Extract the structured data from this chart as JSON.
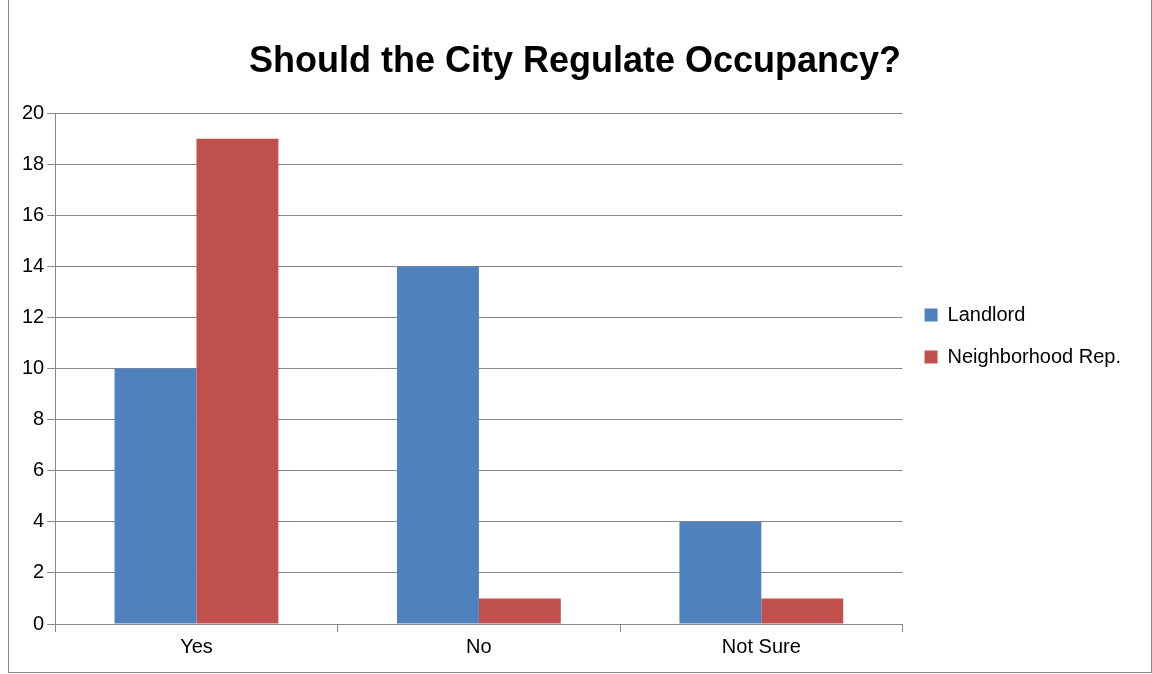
{
  "chart_data": {
    "type": "bar",
    "title": "Should the City Regulate Occupancy?",
    "categories": [
      "Yes",
      "No",
      "Not Sure"
    ],
    "series": [
      {
        "name": "Landlord",
        "color": "#4f81bd",
        "values": [
          10,
          14,
          4
        ]
      },
      {
        "name": "Neighborhood Rep.",
        "color": "#c0504d",
        "values": [
          19,
          1,
          1
        ]
      }
    ],
    "ylim": [
      0,
      20
    ],
    "yticks": [
      0,
      2,
      4,
      6,
      8,
      10,
      12,
      14,
      16,
      18,
      20
    ],
    "grid": "y",
    "legend": "right"
  }
}
